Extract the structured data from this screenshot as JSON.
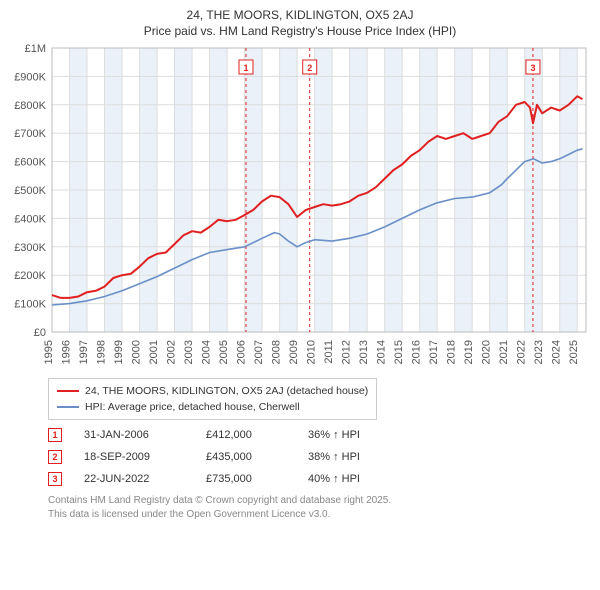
{
  "title": "24, THE MOORS, KIDLINGTON, OX5 2AJ",
  "subtitle": "Price paid vs. HM Land Registry's House Price Index (HPI)",
  "chart": {
    "type": "line",
    "background_color": "#ffffff",
    "grid_color": "#dddddd",
    "axis_color": "#bbbbbb",
    "yaxis": {
      "min": 0,
      "max": 1000000,
      "tick_step": 100000,
      "tick_labels": [
        "£0",
        "£100K",
        "£200K",
        "£300K",
        "£400K",
        "£500K",
        "£600K",
        "£700K",
        "£800K",
        "£900K",
        "£1M"
      ],
      "label_fontsize": 11,
      "label_color": "#555555"
    },
    "xaxis": {
      "years": [
        1995,
        1996,
        1997,
        1998,
        1999,
        2000,
        2001,
        2002,
        2003,
        2004,
        2005,
        2006,
        2007,
        2008,
        2009,
        2010,
        2011,
        2012,
        2013,
        2014,
        2015,
        2016,
        2017,
        2018,
        2019,
        2020,
        2021,
        2022,
        2023,
        2024,
        2025
      ],
      "label_fontsize": 11,
      "label_color": "#555555",
      "label_rotation": -90
    },
    "shaded_bands": {
      "color": "#eaf1f9",
      "year_pairs": [
        [
          1996,
          1997
        ],
        [
          1998,
          1999
        ],
        [
          2000,
          2001
        ],
        [
          2002,
          2003
        ],
        [
          2004,
          2005
        ],
        [
          2006,
          2007
        ],
        [
          2008,
          2009
        ],
        [
          2010,
          2011
        ],
        [
          2012,
          2013
        ],
        [
          2014,
          2015
        ],
        [
          2016,
          2017
        ],
        [
          2018,
          2019
        ],
        [
          2020,
          2021
        ],
        [
          2022,
          2023
        ],
        [
          2024,
          2025
        ]
      ]
    },
    "event_lines": {
      "color": "#e02020",
      "dash": "3,3",
      "width": 1,
      "at_years": [
        2006.08,
        2009.72,
        2022.47
      ]
    },
    "event_labels": [
      "1",
      "2",
      "3"
    ],
    "series": [
      {
        "name": "24, THE MOORS, KIDLINGTON, OX5 2AJ (detached house)",
        "color": "#e02020",
        "width": 2,
        "points": [
          [
            1995.0,
            130000
          ],
          [
            1995.5,
            120000
          ],
          [
            1996.0,
            120000
          ],
          [
            1996.5,
            125000
          ],
          [
            1997.0,
            140000
          ],
          [
            1997.5,
            145000
          ],
          [
            1998.0,
            160000
          ],
          [
            1998.5,
            190000
          ],
          [
            1999.0,
            200000
          ],
          [
            1999.5,
            205000
          ],
          [
            2000.0,
            230000
          ],
          [
            2000.5,
            260000
          ],
          [
            2001.0,
            275000
          ],
          [
            2001.5,
            280000
          ],
          [
            2002.0,
            310000
          ],
          [
            2002.5,
            340000
          ],
          [
            2003.0,
            355000
          ],
          [
            2003.5,
            350000
          ],
          [
            2004.0,
            370000
          ],
          [
            2004.5,
            395000
          ],
          [
            2005.0,
            390000
          ],
          [
            2005.5,
            395000
          ],
          [
            2006.0,
            412000
          ],
          [
            2006.5,
            430000
          ],
          [
            2007.0,
            460000
          ],
          [
            2007.5,
            480000
          ],
          [
            2008.0,
            475000
          ],
          [
            2008.5,
            450000
          ],
          [
            2009.0,
            405000
          ],
          [
            2009.5,
            430000
          ],
          [
            2010.0,
            440000
          ],
          [
            2010.5,
            450000
          ],
          [
            2011.0,
            445000
          ],
          [
            2011.5,
            450000
          ],
          [
            2012.0,
            460000
          ],
          [
            2012.5,
            480000
          ],
          [
            2013.0,
            490000
          ],
          [
            2013.5,
            510000
          ],
          [
            2014.0,
            540000
          ],
          [
            2014.5,
            570000
          ],
          [
            2015.0,
            590000
          ],
          [
            2015.5,
            620000
          ],
          [
            2016.0,
            640000
          ],
          [
            2016.5,
            670000
          ],
          [
            2017.0,
            690000
          ],
          [
            2017.5,
            680000
          ],
          [
            2018.0,
            690000
          ],
          [
            2018.5,
            700000
          ],
          [
            2019.0,
            680000
          ],
          [
            2019.5,
            690000
          ],
          [
            2020.0,
            700000
          ],
          [
            2020.5,
            740000
          ],
          [
            2021.0,
            760000
          ],
          [
            2021.5,
            800000
          ],
          [
            2022.0,
            810000
          ],
          [
            2022.3,
            790000
          ],
          [
            2022.47,
            735000
          ],
          [
            2022.7,
            800000
          ],
          [
            2023.0,
            770000
          ],
          [
            2023.5,
            790000
          ],
          [
            2024.0,
            780000
          ],
          [
            2024.5,
            800000
          ],
          [
            2025.0,
            830000
          ],
          [
            2025.3,
            820000
          ]
        ]
      },
      {
        "name": "HPI: Average price, detached house, Cherwell",
        "color": "#6a8fc7",
        "width": 1.6,
        "points": [
          [
            1995.0,
            95000
          ],
          [
            1996.0,
            100000
          ],
          [
            1997.0,
            110000
          ],
          [
            1998.0,
            125000
          ],
          [
            1999.0,
            145000
          ],
          [
            2000.0,
            170000
          ],
          [
            2001.0,
            195000
          ],
          [
            2002.0,
            225000
          ],
          [
            2003.0,
            255000
          ],
          [
            2004.0,
            280000
          ],
          [
            2005.0,
            290000
          ],
          [
            2006.0,
            300000
          ],
          [
            2007.0,
            330000
          ],
          [
            2007.7,
            350000
          ],
          [
            2008.0,
            345000
          ],
          [
            2008.5,
            320000
          ],
          [
            2009.0,
            300000
          ],
          [
            2009.5,
            315000
          ],
          [
            2010.0,
            325000
          ],
          [
            2011.0,
            320000
          ],
          [
            2012.0,
            330000
          ],
          [
            2013.0,
            345000
          ],
          [
            2014.0,
            370000
          ],
          [
            2015.0,
            400000
          ],
          [
            2016.0,
            430000
          ],
          [
            2017.0,
            455000
          ],
          [
            2018.0,
            470000
          ],
          [
            2019.0,
            475000
          ],
          [
            2020.0,
            490000
          ],
          [
            2020.7,
            520000
          ],
          [
            2021.0,
            540000
          ],
          [
            2021.5,
            570000
          ],
          [
            2022.0,
            600000
          ],
          [
            2022.5,
            610000
          ],
          [
            2023.0,
            595000
          ],
          [
            2023.5,
            600000
          ],
          [
            2024.0,
            610000
          ],
          [
            2024.5,
            625000
          ],
          [
            2025.0,
            640000
          ],
          [
            2025.3,
            645000
          ]
        ]
      }
    ]
  },
  "legend": {
    "rows": [
      {
        "color": "#e02020",
        "label": "24, THE MOORS, KIDLINGTON, OX5 2AJ (detached house)"
      },
      {
        "color": "#6a8fc7",
        "label": "HPI: Average price, detached house, Cherwell"
      }
    ]
  },
  "events": [
    {
      "num": "1",
      "date": "31-JAN-2006",
      "price": "£412,000",
      "delta": "36% ↑ HPI"
    },
    {
      "num": "2",
      "date": "18-SEP-2009",
      "price": "£435,000",
      "delta": "38% ↑ HPI"
    },
    {
      "num": "3",
      "date": "22-JUN-2022",
      "price": "£735,000",
      "delta": "40% ↑ HPI"
    }
  ],
  "footer": {
    "line1": "Contains HM Land Registry data © Crown copyright and database right 2025.",
    "line2": "This data is licensed under the Open Government Licence v3.0."
  }
}
